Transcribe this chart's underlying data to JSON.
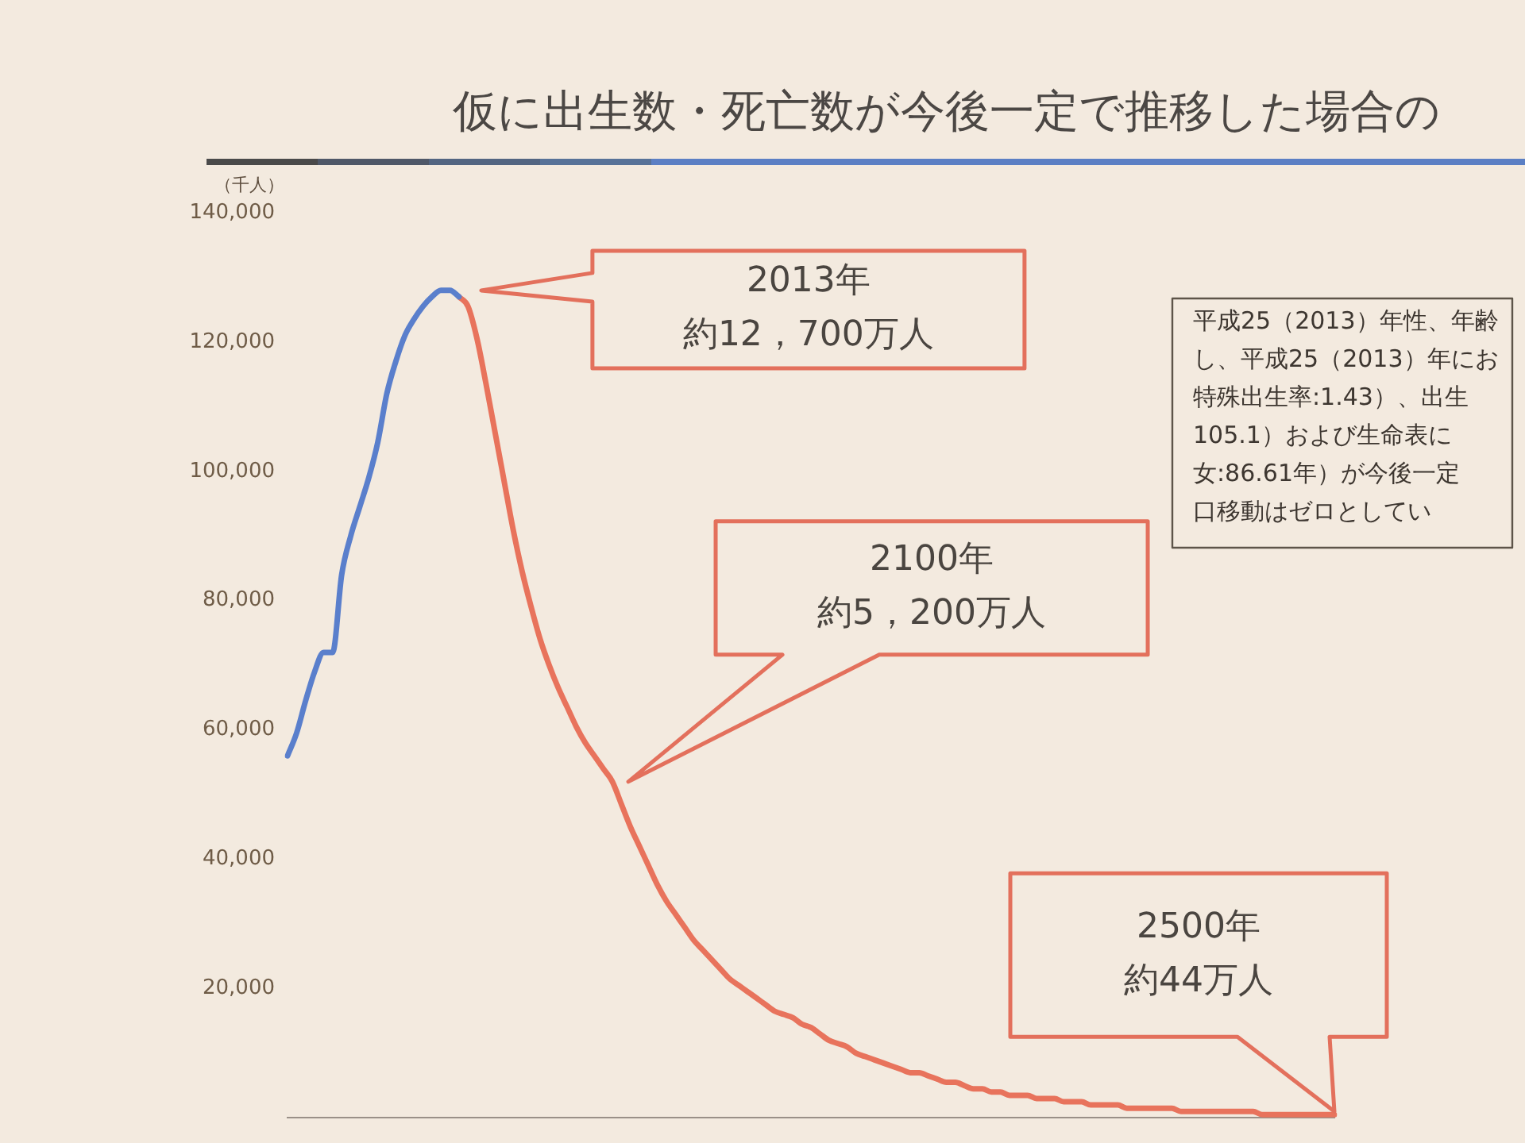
{
  "chart_data": {
    "type": "line",
    "title": "仮に出生数・死亡数が今後一定で推移した場合の",
    "ylabel": "（千人）",
    "categories": [
      null,
      null,
      null,
      null,
      null,
      null,
      null,
      null,
      null,
      null,
      null,
      null,
      null,
      null,
      null,
      null,
      null,
      null,
      null,
      null,
      null,
      null,
      null,
      null,
      null,
      null,
      null,
      null,
      null,
      null,
      null,
      null,
      null,
      null,
      null,
      null,
      null,
      null,
      null,
      null,
      null,
      null,
      null,
      null,
      null,
      null,
      null,
      null,
      null,
      null,
      null,
      null,
      null,
      null,
      null,
      null,
      null,
      null,
      null,
      null,
      null,
      null,
      null,
      null,
      null,
      null,
      null,
      null,
      null,
      null,
      null,
      null,
      null,
      null,
      null,
      null,
      null,
      null,
      null,
      null,
      null,
      null,
      null,
      null,
      null,
      null,
      null,
      null,
      null,
      null,
      null,
      null,
      null,
      null,
      null,
      null,
      null,
      null,
      null,
      null,
      null,
      null,
      null,
      null,
      null,
      null,
      null,
      null,
      null,
      null,
      null,
      null,
      null,
      null,
      null,
      null,
      null
    ],
    "series": [
      {
        "color": "#5a7fcc",
        "values": [
          56000,
          59500,
          64500,
          69000,
          72000,
          72000,
          84000,
          90000,
          94500,
          99000,
          104500,
          112000,
          117000,
          121000,
          123500,
          125500,
          127000,
          128000,
          128000,
          127000,
          null,
          null,
          null,
          null,
          null,
          null,
          null,
          null,
          null,
          null,
          null,
          null,
          null,
          null,
          null,
          null,
          null,
          null,
          null,
          null,
          null,
          null,
          null,
          null,
          null,
          null,
          null,
          null,
          null,
          null,
          null,
          null,
          null,
          null,
          null,
          null,
          null,
          null,
          null,
          null,
          null,
          null,
          null,
          null,
          null,
          null,
          null,
          null,
          null,
          null,
          null,
          null,
          null,
          null,
          null,
          null,
          null,
          null,
          null,
          null,
          null,
          null,
          null,
          null,
          null,
          null,
          null,
          null,
          null,
          null,
          null,
          null,
          null,
          null,
          null,
          null,
          null,
          null,
          null,
          null,
          null,
          null,
          null,
          null,
          null,
          null,
          null,
          null,
          null,
          null,
          null,
          null,
          null,
          null,
          null,
          null,
          null
        ]
      },
      {
        "color": "#e8735c",
        "values": [
          null,
          null,
          null,
          null,
          null,
          null,
          null,
          null,
          null,
          null,
          null,
          null,
          null,
          null,
          null,
          null,
          null,
          null,
          null,
          127000,
          125500,
          120500,
          113500,
          106000,
          98500,
          91000,
          84500,
          79000,
          74000,
          70000,
          66500,
          63500,
          60500,
          58000,
          56000,
          54000,
          52000,
          48500,
          45000,
          42000,
          39000,
          36000,
          33500,
          31500,
          29500,
          27500,
          26000,
          24500,
          23000,
          21500,
          20500,
          19500,
          18500,
          17500,
          16500,
          16000,
          15500,
          14500,
          14000,
          13000,
          12000,
          11500,
          11000,
          10000,
          9500,
          9000,
          8500,
          8000,
          7500,
          7000,
          7000,
          6500,
          6000,
          5500,
          5500,
          5000,
          4500,
          4500,
          4000,
          4000,
          3500,
          3500,
          3500,
          3000,
          3000,
          3000,
          2500,
          2500,
          2500,
          2000,
          2000,
          2000,
          2000,
          1500,
          1500,
          1500,
          1500,
          1500,
          1500,
          1000,
          1000,
          1000,
          1000,
          1000,
          1000,
          1000,
          1000,
          1000,
          500,
          500,
          500,
          500,
          500,
          500,
          500,
          500,
          500
        ]
      }
    ],
    "ylim": [
      0,
      140000
    ],
    "yticks": [
      {
        "value": 20000,
        "label": "20,000"
      },
      {
        "value": 40000,
        "label": "40,000"
      },
      {
        "value": 60000,
        "label": "60,000"
      },
      {
        "value": 80000,
        "label": "80,000"
      },
      {
        "value": 100000,
        "label": "100,000"
      },
      {
        "value": 120000,
        "label": "120,000"
      },
      {
        "value": 140000,
        "label": "140,000"
      }
    ],
    "tick_labels": "y",
    "grid": false,
    "legend": false,
    "marker": "none",
    "annotations": [
      "2013年約12，700万人",
      "2100年約5，200万人",
      "2500年約44万人",
      "平成25（2013）年性、年齢",
      "し、平成25（2013）年にお",
      "特殊出生率:1.43）、出生",
      "105.1）および生命表に",
      "女:86.61年）が今後一定",
      "口移動はゼロとしてい"
    ]
  }
}
